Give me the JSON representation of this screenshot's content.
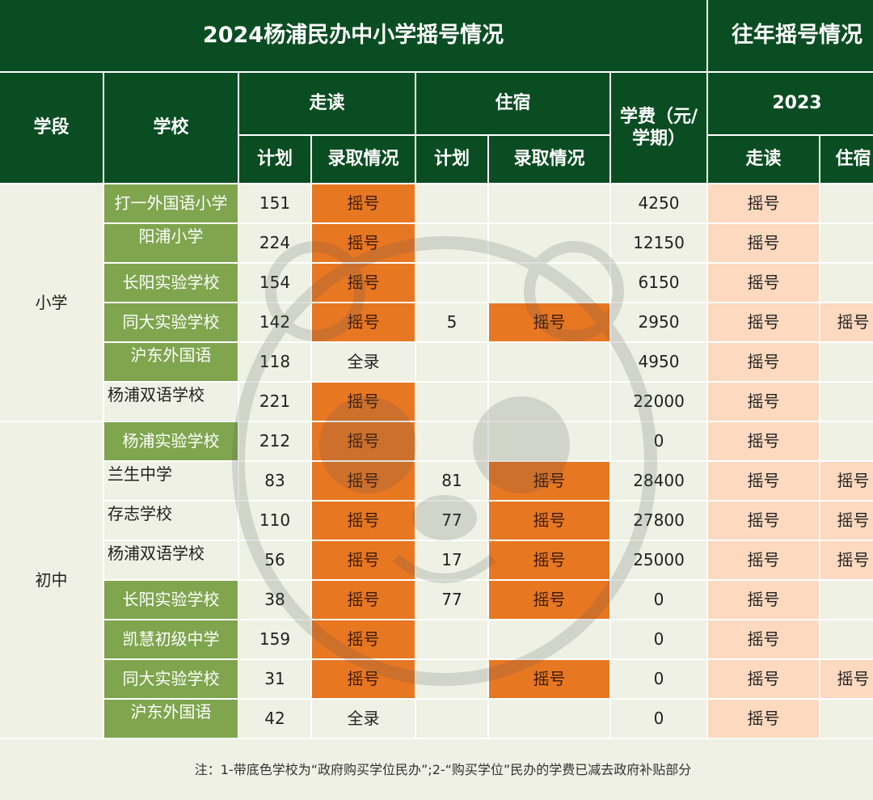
{
  "title": "2024杨浦民办中小学摇号情况",
  "prev_title": "往年摇号情况",
  "headers": {
    "stage": "学段",
    "school": "学校",
    "day": "走读",
    "board": "住宿",
    "fee": "学费（元/学期）",
    "plan": "计划",
    "admit": "录取情况",
    "year": "2023",
    "prev_day": "走读",
    "prev_board": "住宿"
  },
  "stages": {
    "primary": "小学",
    "middle": "初中"
  },
  "rows": [
    {
      "school": "打一外国语小学",
      "day_plan": "151",
      "day_admit": "摇号",
      "board_plan": "",
      "board_admit": "",
      "fee": "4250",
      "prev_day": "摇号",
      "prev_board": ""
    },
    {
      "school": "阳浦小学",
      "day_plan": "224",
      "day_admit": "摇号",
      "board_plan": "",
      "board_admit": "",
      "fee": "12150",
      "prev_day": "摇号",
      "prev_board": ""
    },
    {
      "school": "长阳实验学校",
      "day_plan": "154",
      "day_admit": "摇号",
      "board_plan": "",
      "board_admit": "",
      "fee": "6150",
      "prev_day": "摇号",
      "prev_board": ""
    },
    {
      "school": "同大实验学校",
      "day_plan": "142",
      "day_admit": "摇号",
      "board_plan": "5",
      "board_admit": "摇号",
      "fee": "2950",
      "prev_day": "摇号",
      "prev_board": "摇号"
    },
    {
      "school": "沪东外国语",
      "day_plan": "118",
      "day_admit": "全录",
      "board_plan": "",
      "board_admit": "",
      "fee": "4950",
      "prev_day": "摇号",
      "prev_board": ""
    },
    {
      "school": "杨浦双语学校",
      "day_plan": "221",
      "day_admit": "摇号",
      "board_plan": "",
      "board_admit": "",
      "fee": "22000",
      "prev_day": "摇号",
      "prev_board": ""
    },
    {
      "school": "杨浦实验学校",
      "day_plan": "212",
      "day_admit": "摇号",
      "board_plan": "",
      "board_admit": "",
      "fee": "0",
      "prev_day": "摇号",
      "prev_board": ""
    },
    {
      "school": "兰生中学",
      "day_plan": "83",
      "day_admit": "摇号",
      "board_plan": "81",
      "board_admit": "摇号",
      "fee": "28400",
      "prev_day": "摇号",
      "prev_board": "摇号"
    },
    {
      "school": "存志学校",
      "day_plan": "110",
      "day_admit": "摇号",
      "board_plan": "77",
      "board_admit": "摇号",
      "fee": "27800",
      "prev_day": "摇号",
      "prev_board": "摇号"
    },
    {
      "school": "杨浦双语学校",
      "day_plan": "56",
      "day_admit": "摇号",
      "board_plan": "17",
      "board_admit": "摇号",
      "fee": "25000",
      "prev_day": "摇号",
      "prev_board": "摇号"
    },
    {
      "school": "长阳实验学校",
      "day_plan": "38",
      "day_admit": "摇号",
      "board_plan": "77",
      "board_admit": "摇号",
      "fee": "0",
      "prev_day": "摇号",
      "prev_board": ""
    },
    {
      "school": "凯慧初级中学",
      "day_plan": "159",
      "day_admit": "摇号",
      "board_plan": "",
      "board_admit": "",
      "fee": "0",
      "prev_day": "摇号",
      "prev_board": ""
    },
    {
      "school": "同大实验学校",
      "day_plan": "31",
      "day_admit": "摇号",
      "board_plan": "",
      "board_admit": "摇号",
      "fee": "0",
      "prev_day": "摇号",
      "prev_board": "摇号"
    },
    {
      "school": "沪东外国语",
      "day_plan": "42",
      "day_admit": "全录",
      "board_plan": "",
      "board_admit": "",
      "fee": "0",
      "prev_day": "摇号",
      "prev_board": ""
    }
  ],
  "note": "注：1-带底色学校为“政府购买学位民办”;2-“购买学位”民办的学费已减去政府补贴部分",
  "colors": {
    "header_bg": "#0b4d22",
    "subsidized_school_bg": "#7fa54e",
    "lottery_2024": "#e87722",
    "lottery_2023": "#fcd9bf",
    "cell_bg": "#eef1e3"
  }
}
